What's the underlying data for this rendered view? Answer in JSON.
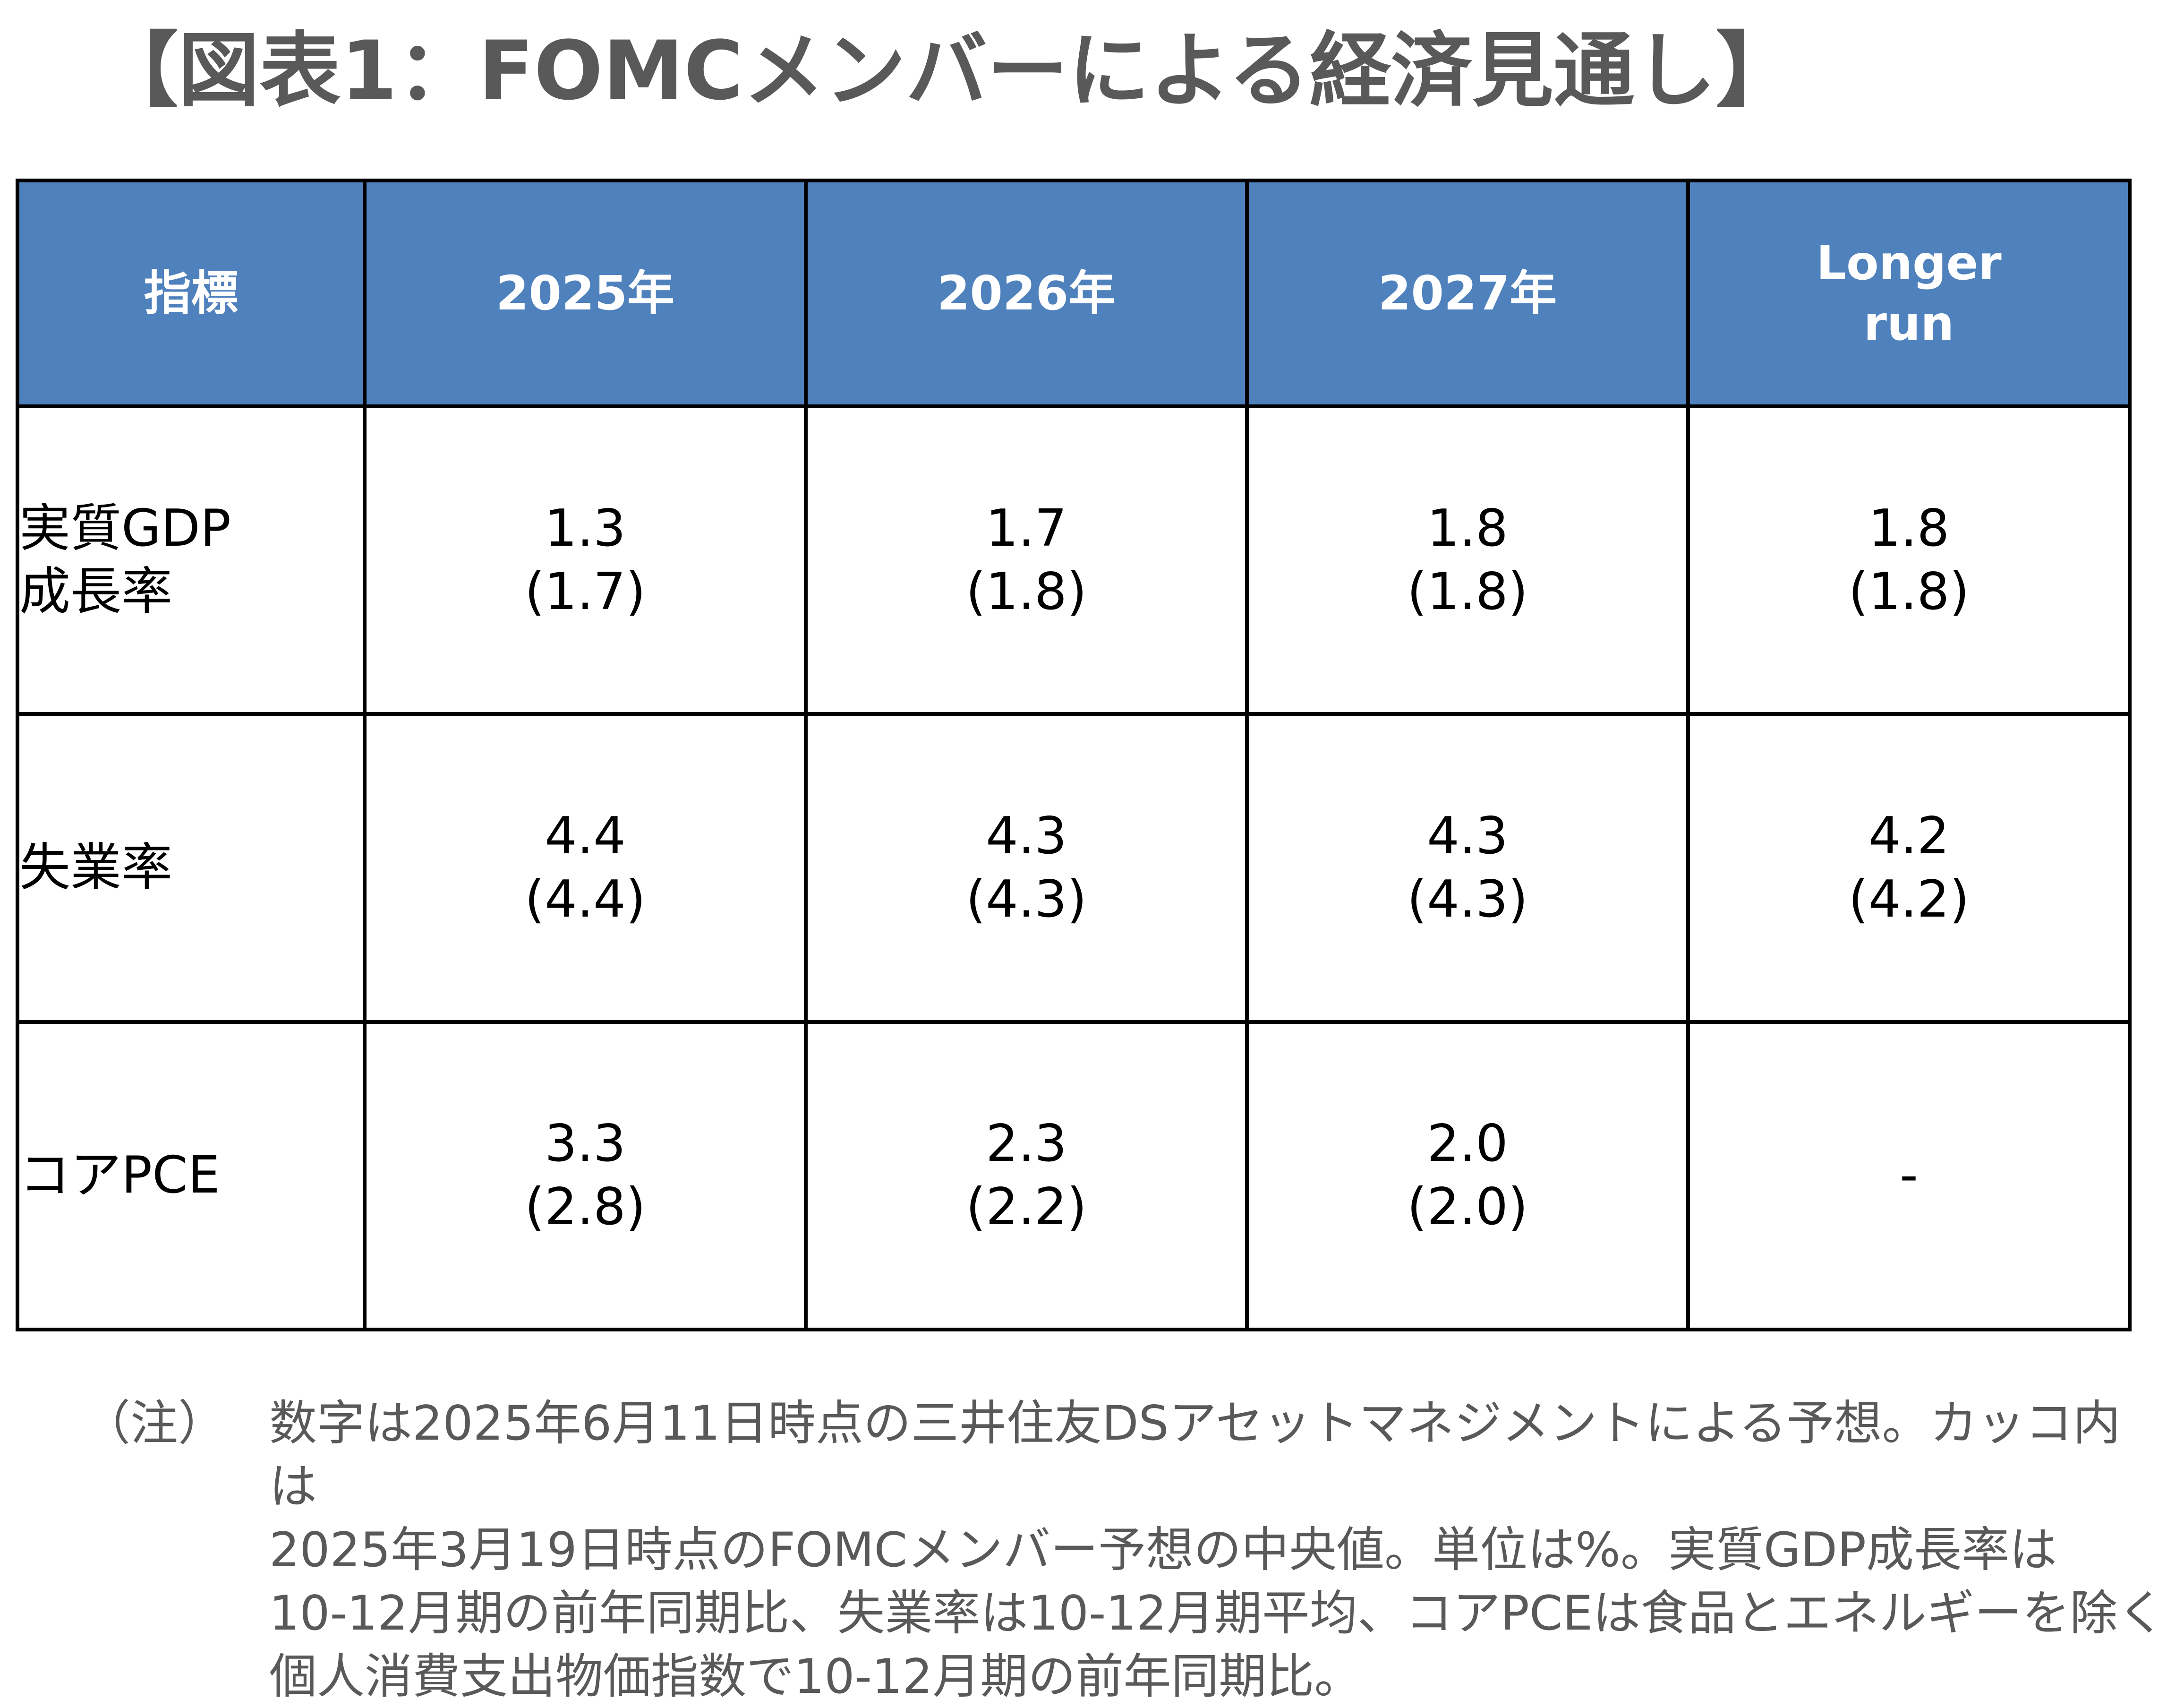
{
  "title": "【図表1：FOMCメンバーによる経済見通し】",
  "table": {
    "headers": [
      "指標",
      "2025年",
      "2026年",
      "2027年",
      [
        "Longer",
        "run"
      ]
    ],
    "rows": [
      {
        "label": [
          "実質GDP",
          "成長率"
        ],
        "cells": [
          [
            "1.3",
            "(1.7)"
          ],
          [
            "1.7",
            "(1.8)"
          ],
          [
            "1.8",
            "(1.8)"
          ],
          [
            "1.8",
            "(1.8)"
          ]
        ]
      },
      {
        "label": [
          "失業率"
        ],
        "cells": [
          [
            "4.4",
            "(4.4)"
          ],
          [
            "4.3",
            "(4.3)"
          ],
          [
            "4.3",
            "(4.3)"
          ],
          [
            "4.2",
            "(4.2)"
          ]
        ]
      },
      {
        "label": [
          "コアPCE"
        ],
        "cells": [
          [
            "3.3",
            "(2.8)"
          ],
          [
            "2.3",
            "(2.2)"
          ],
          [
            "2.0",
            "(2.0)"
          ],
          [
            "-"
          ]
        ]
      }
    ]
  },
  "note": {
    "head": "（注）",
    "lines": [
      "数字は2025年6月11日時点の三井住友DSアセットマネジメントによる予想。カッコ内は",
      "2025年3月19日時点のFOMCメンバー予想の中央値。単位は%。実質GDP成長率は",
      "10-12月期の前年同期比、失業率は10-12月期平均、コアPCEは食品とエネルギーを除く",
      "個人消費支出物価指数で10-12月期の前年同期比。"
    ]
  }
}
